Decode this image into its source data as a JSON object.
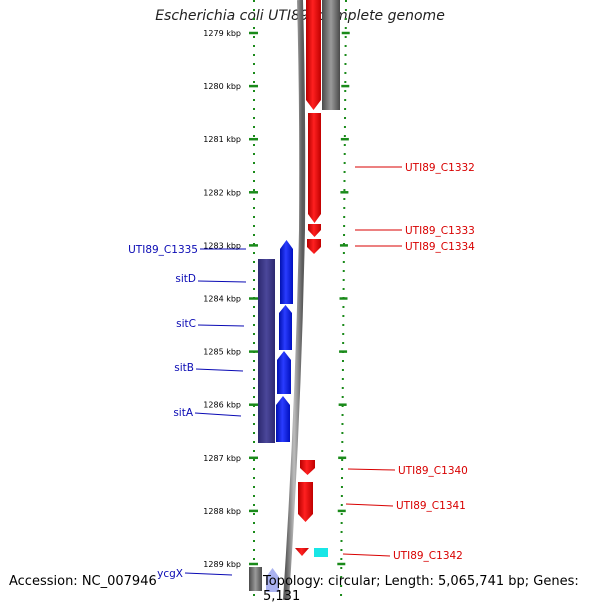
{
  "title": "Escherichia coli UTI89, complete genome",
  "accession": "Accession: NC_007946",
  "topology": "Topology: circular; Length: 5,065,741 bp; Genes: 5,131",
  "colors": {
    "background": "#ffffff",
    "ruler": "#1a8a1a",
    "forward_gene": "#0a1ef0",
    "forward_dark": "#3f3b8c",
    "reverse_gene": "#ff0000",
    "grey_gene": "#7a7a7a",
    "cyan_gene": "#18e6e6",
    "light_blue_gene": "#aab2f0",
    "label_blue": "#0a0ab4",
    "label_red": "#d80000",
    "backbone": "#8a8a8a"
  },
  "ruler_ticks": [
    "1279 kbp",
    "1280 kbp",
    "1281 kbp",
    "1282 kbp",
    "1283 kbp",
    "1284 kbp",
    "1285 kbp",
    "1286 kbp",
    "1287 kbp",
    "1288 kbp",
    "1289 kbp"
  ],
  "gene_labels_left": [
    "UTI89_C1335",
    "sitD",
    "sitC",
    "sitB",
    "sitA",
    "ycgX"
  ],
  "gene_labels_right": [
    "UTI89_C1332",
    "UTI89_C1333",
    "UTI89_C1334",
    "UTI89_C1340",
    "UTI89_C1341",
    "UTI89_C1342"
  ]
}
